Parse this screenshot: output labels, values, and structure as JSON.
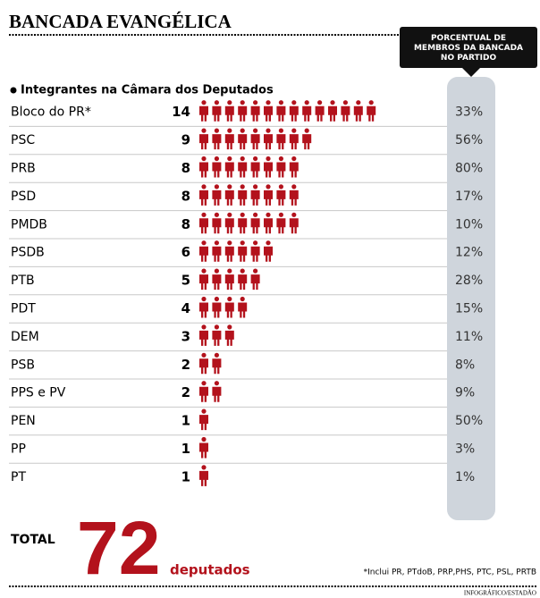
{
  "chart_data": {
    "type": "pictograph",
    "title": "BANCADA EVANGÉLICA",
    "subtitle": "Integrantes na Câmara dos Deputados",
    "categories": [
      "Bloco do PR*",
      "PSC",
      "PRB",
      "PSD",
      "PMDB",
      "PSDB",
      "PTB",
      "PDT",
      "DEM",
      "PSB",
      "PPS e PV",
      "PEN",
      "PP",
      "PT"
    ],
    "values": [
      14,
      9,
      8,
      8,
      8,
      6,
      5,
      4,
      3,
      2,
      2,
      1,
      1,
      1
    ],
    "color": "#b3121c",
    "share": {
      "label": "PORCENTUAL DE MEMBROS DA BANCADA NO PARTIDO",
      "values": [
        33,
        56,
        80,
        17,
        10,
        12,
        28,
        15,
        11,
        8,
        9,
        50,
        3,
        1
      ],
      "value_labels": [
        "33%",
        "56%",
        "80%",
        "17%",
        "10%",
        "12%",
        "28%",
        "15%",
        "11%",
        "8%",
        "9%",
        "50%",
        "3%",
        "1%"
      ]
    },
    "total": {
      "label": "TOTAL",
      "value": 72,
      "unit": "deputados"
    },
    "footnote": "*Inclui PR, PTdoB, PRP,PHS, PTC, PSL, PRTB",
    "credit": "INFOGRÁFICO/ESTADÃO"
  }
}
